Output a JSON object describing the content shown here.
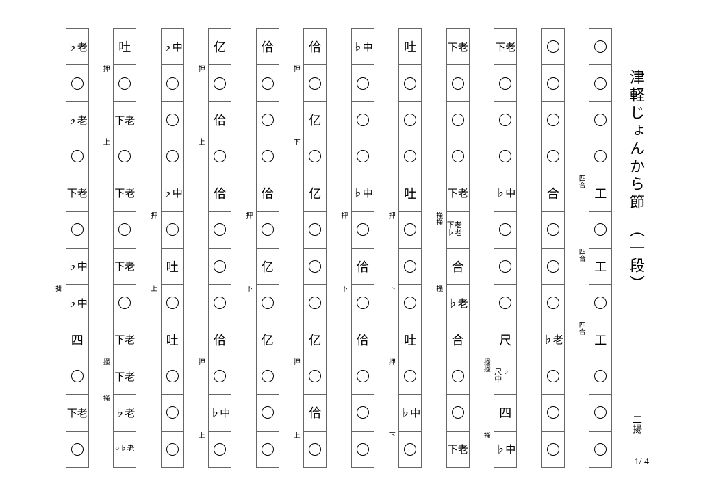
{
  "title": "津軽じょんから節　（一段）",
  "tuning": "二揚",
  "pageNumber": "1/ 4",
  "colors": {
    "background": "#ffffff",
    "border": "#666666",
    "text": "#000000"
  },
  "columns": [
    {
      "main": [
        "○",
        "○",
        "○",
        "○",
        "工",
        "○",
        "工",
        "○",
        "工",
        "○",
        "○",
        "○"
      ],
      "annot": [
        "",
        "",
        "",
        "",
        "四合",
        "",
        "四合",
        "",
        "四合",
        "",
        "",
        ""
      ]
    },
    {
      "main": [
        "○",
        "○",
        "○",
        "○",
        "合",
        "○",
        "○",
        "○",
        "♭老",
        "○",
        "○",
        "○"
      ],
      "annot": [
        "",
        "",
        "",
        "",
        "",
        "",
        "",
        "",
        "",
        "",
        "",
        ""
      ]
    },
    {
      "main": [
        "下老",
        "○",
        "○",
        "○",
        "♭中",
        "○",
        "○",
        "○",
        "尺",
        "尺♭中",
        "四",
        "♭中"
      ],
      "annot": [
        "",
        "",
        "",
        "",
        "",
        "",
        "",
        "",
        "",
        "掻掻",
        "",
        "掻"
      ]
    },
    {
      "main": [
        "下老",
        "○",
        "○",
        "○",
        "下老",
        "下老♭老",
        "合",
        "♭老",
        "合",
        "○",
        "○",
        "下老"
      ],
      "annot": [
        "",
        "",
        "",
        "",
        "",
        "掻掻",
        "",
        "掻",
        "",
        "",
        "",
        ""
      ]
    },
    {
      "main": [
        "吐",
        "○",
        "○",
        "○",
        "吐",
        "○",
        "○",
        "○",
        "吐",
        "○",
        "♭中",
        "○"
      ],
      "annot": [
        "",
        "",
        "",
        "",
        "",
        "押",
        "",
        "下",
        "",
        "押",
        "",
        "下"
      ]
    },
    {
      "main": [
        "♭中",
        "○",
        "○",
        "○",
        "♭中",
        "○",
        "佮",
        "○",
        "佮",
        "○",
        "○",
        "○"
      ],
      "annot": [
        "",
        "",
        "",
        "",
        "",
        "押",
        "",
        "下",
        "",
        "",
        "",
        ""
      ]
    },
    {
      "main": [
        "佮",
        "○",
        "亿",
        "○",
        "亿",
        "○",
        "○",
        "○",
        "亿",
        "○",
        "佮",
        "○"
      ],
      "annot": [
        "",
        "押",
        "",
        "下",
        "",
        "",
        "",
        "",
        "",
        "押",
        "",
        "上"
      ]
    },
    {
      "main": [
        "佮",
        "○",
        "○",
        "○",
        "佮",
        "○",
        "亿",
        "○",
        "亿",
        "○",
        "○",
        "○"
      ],
      "annot": [
        "",
        "",
        "",
        "",
        "",
        "押",
        "",
        "下",
        "",
        "",
        "",
        ""
      ]
    },
    {
      "main": [
        "亿",
        "○",
        "佮",
        "○",
        "佮",
        "○",
        "○",
        "○",
        "佮",
        "○",
        "♭中",
        "○"
      ],
      "annot": [
        "",
        "押",
        "",
        "上",
        "",
        "",
        "",
        "",
        "",
        "押",
        "",
        "上"
      ]
    },
    {
      "main": [
        "♭中",
        "○",
        "○",
        "○",
        "♭中",
        "○",
        "吐",
        "○",
        "吐",
        "○",
        "○",
        "○"
      ],
      "annot": [
        "",
        "",
        "",
        "",
        "",
        "押",
        "",
        "上",
        "",
        "",
        "",
        ""
      ]
    },
    {
      "main": [
        "吐",
        "○",
        "下老",
        "○",
        "下老",
        "○",
        "下老",
        "○",
        "下老",
        "下老",
        "♭老",
        "○♭老"
      ],
      "annot": [
        "",
        "押",
        "",
        "上",
        "",
        "",
        "",
        "",
        "",
        "掻",
        "掻",
        ""
      ]
    },
    {
      "main": [
        "♭老",
        "○",
        "♭老",
        "○",
        "下老",
        "○",
        "♭中",
        "♭中",
        "四",
        "○",
        "下老",
        "○"
      ],
      "annot": [
        "",
        "",
        "",
        "",
        "",
        "",
        "",
        "掛",
        "",
        "",
        "",
        ""
      ]
    }
  ]
}
